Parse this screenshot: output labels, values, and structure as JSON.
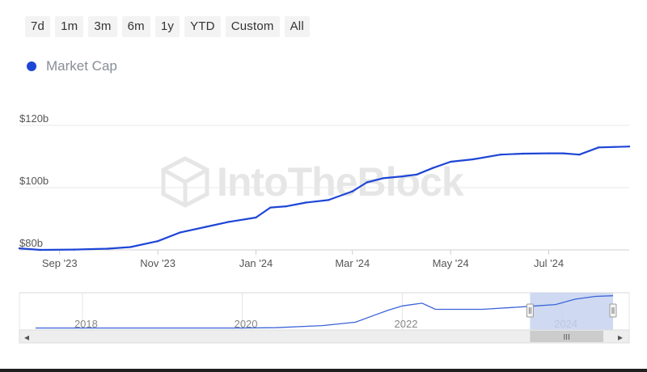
{
  "range_selector": {
    "buttons": [
      "7d",
      "1m",
      "3m",
      "6m",
      "1y",
      "YTD",
      "Custom",
      "All"
    ]
  },
  "legend": {
    "label": "Market Cap",
    "color": "#1e46d6"
  },
  "watermark": {
    "text": "IntoTheBlock"
  },
  "chart_data": {
    "type": "line",
    "title": "",
    "xlabel": "",
    "ylabel": "",
    "ylim": [
      80,
      120
    ],
    "xlim": [
      "2023-08-07",
      "2024-08-20"
    ],
    "y_ticks": [
      {
        "value": 80,
        "label": "$80b"
      },
      {
        "value": 100,
        "label": "$100b"
      },
      {
        "value": 120,
        "label": "$120b"
      }
    ],
    "x_ticks": [
      {
        "date": "2023-09-01",
        "label": "Sep '23"
      },
      {
        "date": "2023-11-01",
        "label": "Nov '23"
      },
      {
        "date": "2024-01-01",
        "label": "Jan '24"
      },
      {
        "date": "2024-03-01",
        "label": "Mar '24"
      },
      {
        "date": "2024-05-01",
        "label": "May '24"
      },
      {
        "date": "2024-07-01",
        "label": "Jul '24"
      }
    ],
    "grid": true,
    "legend_position": "top-left",
    "series": [
      {
        "name": "Market Cap",
        "color": "#1e46d6",
        "x": [
          "2023-08-07",
          "2023-08-20",
          "2023-09-10",
          "2023-10-01",
          "2023-10-15",
          "2023-11-01",
          "2023-11-15",
          "2023-12-01",
          "2023-12-15",
          "2024-01-01",
          "2024-01-10",
          "2024-01-20",
          "2024-02-01",
          "2024-02-15",
          "2024-03-01",
          "2024-03-10",
          "2024-03-20",
          "2024-04-01",
          "2024-04-10",
          "2024-04-20",
          "2024-05-01",
          "2024-05-15",
          "2024-06-01",
          "2024-06-15",
          "2024-07-01",
          "2024-07-10",
          "2024-07-20",
          "2024-08-01",
          "2024-08-20"
        ],
        "y": [
          80.5,
          80.0,
          80.1,
          80.4,
          80.9,
          82.8,
          85.6,
          87.4,
          89.0,
          90.4,
          93.6,
          94.0,
          95.2,
          96.0,
          98.8,
          101.7,
          103.0,
          103.6,
          104.2,
          106.3,
          108.3,
          109.1,
          110.6,
          110.9,
          111.0,
          111.0,
          110.6,
          112.9,
          113.2
        ]
      }
    ]
  },
  "navigator": {
    "x_labels": [
      "2018",
      "2020",
      "2022",
      "2024"
    ],
    "handle_glyph": "III",
    "left_arrow": "◂",
    "right_arrow": "▸",
    "series": {
      "x": [
        "2017-06-01",
        "2018-06-01",
        "2019-01-01",
        "2020-01-01",
        "2020-06-01",
        "2021-01-01",
        "2021-06-01",
        "2021-09-01",
        "2021-11-01",
        "2022-01-01",
        "2022-04-01",
        "2022-06-01",
        "2023-01-01",
        "2023-06-01",
        "2023-09-01",
        "2023-12-01",
        "2024-03-01",
        "2024-06-01",
        "2024-08-20"
      ],
      "y": [
        0.5,
        0.5,
        0.5,
        0.5,
        1.0,
        4.0,
        9.0,
        20.0,
        27.0,
        33.0,
        37.0,
        28.0,
        28.0,
        31.0,
        33.0,
        35.0,
        43.0,
        47.0,
        48.0
      ]
    },
    "window": [
      "2023-08-07",
      "2024-08-20"
    ]
  }
}
